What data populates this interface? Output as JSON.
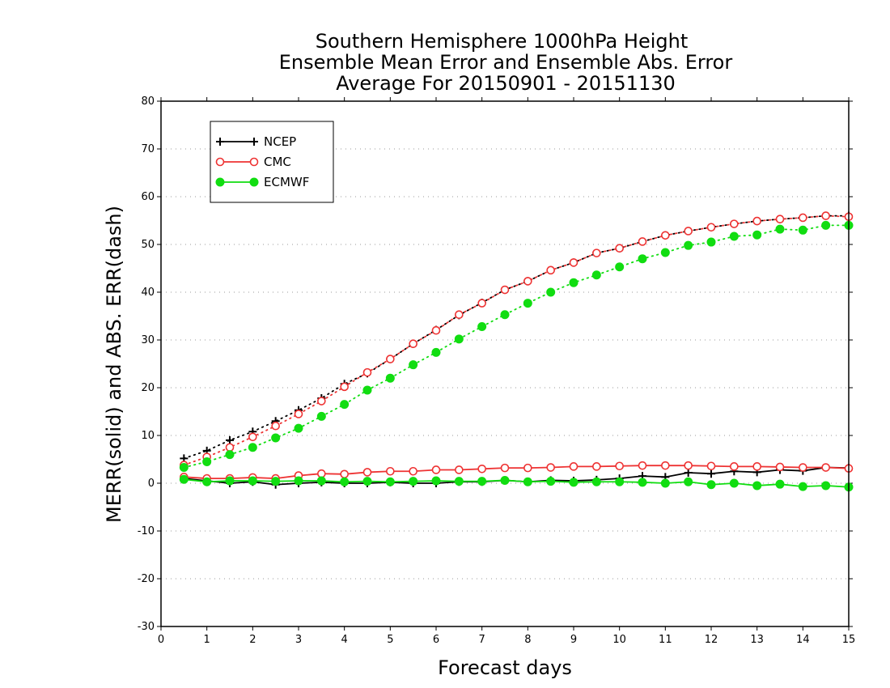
{
  "chart_data": {
    "type": "line",
    "title": [
      "Southern Hemisphere 1000hPa Height",
      "Ensemble Mean Error and Ensemble Abs. Error",
      "Average For 20150901 - 20151130"
    ],
    "xlabel": "Forecast days",
    "ylabel": "MERR(solid) and ABS. ERR(dash)",
    "xlim": [
      0,
      15
    ],
    "ylim": [
      -30,
      80
    ],
    "xticks": [
      0,
      1,
      2,
      3,
      4,
      5,
      6,
      7,
      8,
      9,
      10,
      11,
      12,
      13,
      14,
      15
    ],
    "yticks": [
      -30,
      -20,
      -10,
      0,
      10,
      20,
      30,
      40,
      50,
      60,
      70,
      80
    ],
    "grid": "horizontal dotted",
    "legend_position": "top-left",
    "x": [
      0.5,
      1,
      1.5,
      2,
      2.5,
      3,
      3.5,
      4,
      4.5,
      5,
      5.5,
      6,
      6.5,
      7,
      7.5,
      8,
      8.5,
      9,
      9.5,
      10,
      10.5,
      11,
      11.5,
      12,
      12.5,
      13,
      13.5,
      14,
      14.5,
      15
    ],
    "series": [
      {
        "name": "NCEP",
        "color": "#000000",
        "marker": "plus",
        "merr": [
          1.0,
          0.5,
          0.0,
          0.3,
          -0.3,
          0.0,
          0.2,
          0.0,
          0.0,
          0.2,
          0.0,
          0.0,
          0.3,
          0.3,
          0.6,
          0.3,
          0.6,
          0.5,
          0.7,
          1.0,
          1.5,
          1.3,
          2.2,
          2.0,
          2.5,
          2.3,
          2.8,
          2.6,
          3.3,
          3.2
        ],
        "abs_err": [
          5.2,
          6.8,
          9.0,
          10.8,
          13.0,
          15.3,
          17.8,
          20.8,
          23.0,
          26.0,
          29.2,
          32.1,
          35.2,
          37.8,
          40.5,
          42.3,
          44.6,
          46.2,
          48.2,
          49.2,
          50.6,
          51.9,
          52.8,
          53.6,
          54.3,
          54.9,
          55.3,
          55.6,
          56.0,
          56.0
        ]
      },
      {
        "name": "CMC",
        "color": "#ee3333",
        "marker": "open-circle",
        "merr": [
          1.3,
          1.0,
          1.0,
          1.2,
          1.0,
          1.6,
          2.0,
          1.9,
          2.3,
          2.5,
          2.5,
          2.8,
          2.8,
          3.0,
          3.2,
          3.2,
          3.3,
          3.5,
          3.5,
          3.6,
          3.7,
          3.7,
          3.7,
          3.6,
          3.5,
          3.5,
          3.4,
          3.3,
          3.3,
          3.1
        ],
        "abs_err": [
          3.8,
          5.5,
          7.5,
          9.7,
          12.0,
          14.5,
          17.2,
          20.2,
          23.2,
          26.0,
          29.2,
          32.0,
          35.3,
          37.7,
          40.5,
          42.3,
          44.6,
          46.2,
          48.2,
          49.2,
          50.6,
          51.9,
          52.8,
          53.6,
          54.3,
          54.9,
          55.3,
          55.6,
          56.0,
          55.8
        ]
      },
      {
        "name": "ECMWF",
        "color": "#11dd11",
        "marker": "filled-circle",
        "merr": [
          0.8,
          0.3,
          0.5,
          0.5,
          0.4,
          0.5,
          0.5,
          0.3,
          0.4,
          0.3,
          0.4,
          0.5,
          0.4,
          0.4,
          0.6,
          0.3,
          0.4,
          0.2,
          0.3,
          0.3,
          0.2,
          0.0,
          0.3,
          -0.3,
          0.0,
          -0.5,
          -0.2,
          -0.7,
          -0.5,
          -0.8
        ],
        "abs_err": [
          3.3,
          4.5,
          6.0,
          7.5,
          9.5,
          11.5,
          14.0,
          16.5,
          19.5,
          22.0,
          24.8,
          27.4,
          30.2,
          32.8,
          35.3,
          37.7,
          40.0,
          42.0,
          43.6,
          45.3,
          47.0,
          48.3,
          49.8,
          50.5,
          51.7,
          52.0,
          53.2,
          53.0,
          54.0,
          54.0
        ]
      }
    ]
  }
}
